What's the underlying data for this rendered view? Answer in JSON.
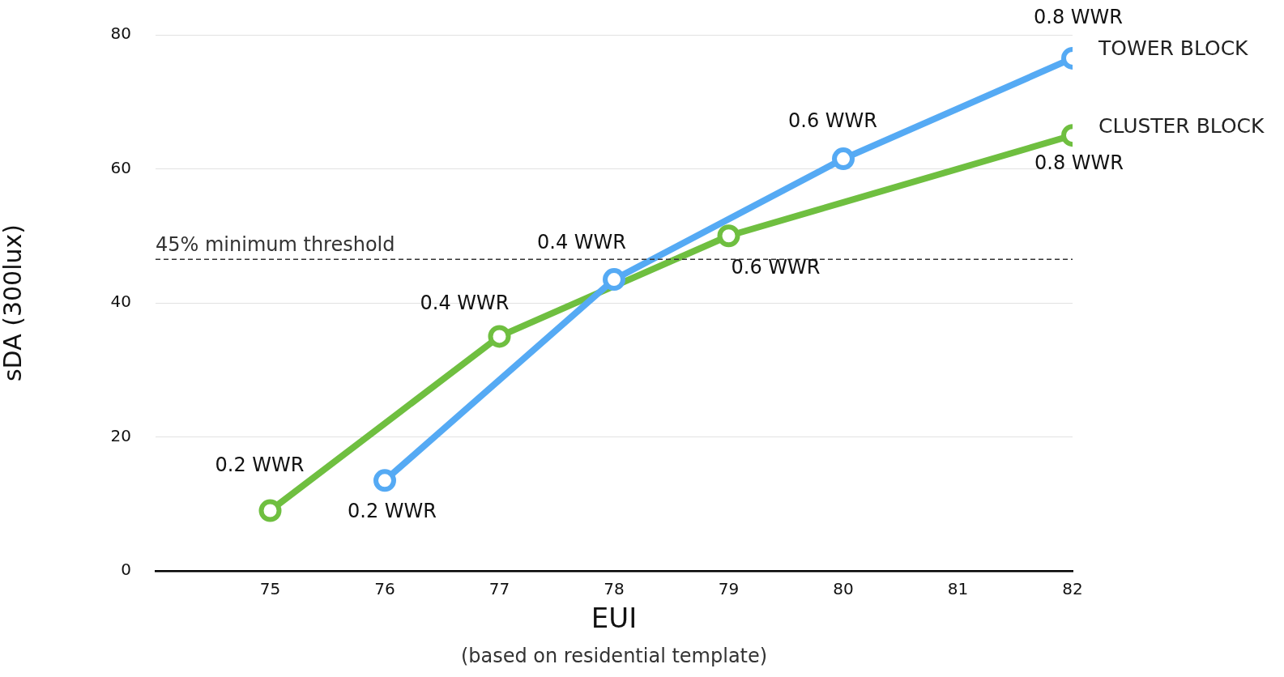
{
  "chart_data": {
    "type": "line",
    "xlabel": "EUI",
    "ylabel": "sDA (300lux)",
    "xlim": [
      74,
      82
    ],
    "xticks": [
      75,
      76,
      77,
      78,
      79,
      80,
      81,
      82
    ],
    "ylim": [
      0,
      80
    ],
    "yticks": [
      0,
      20,
      40,
      60,
      80
    ],
    "grid": "y",
    "legend": false,
    "marker": "circle",
    "line_style": "solid",
    "series": [
      {
        "name": "TOWER BLOCK",
        "color": "#55aaf4",
        "x": [
          76,
          78,
          80,
          82
        ],
        "values": [
          13.5,
          43.5,
          61.5,
          76.5
        ]
      },
      {
        "name": "CLUSTER BLOCK",
        "color": "#6fbf40",
        "x": [
          75,
          77,
          79,
          82
        ],
        "values": [
          9,
          35,
          50,
          65
        ]
      }
    ],
    "ref_lines": [
      {
        "axis": "y",
        "value": 46.5,
        "label": "45% minimum threshold",
        "color": "#333333",
        "line_style": "dashed"
      }
    ],
    "annotations": [
      {
        "text": "0.2 WWR",
        "x": 75,
        "y": 9
      },
      {
        "text": "0.2 WWR",
        "x": 76,
        "y": 13.5
      },
      {
        "text": "0.4 WWR",
        "x": 77,
        "y": 35
      },
      {
        "text": "0.4 WWR",
        "x": 78,
        "y": 43.5
      },
      {
        "text": "0.6 WWR",
        "x": 79,
        "y": 50
      },
      {
        "text": "0.6 WWR",
        "x": 80,
        "y": 61.5
      },
      {
        "text": "0.8 WWR",
        "x": 82,
        "y": 65
      },
      {
        "text": "0.8 WWR",
        "x": 82,
        "y": 76.5
      },
      "(based on residential template)"
    ]
  }
}
